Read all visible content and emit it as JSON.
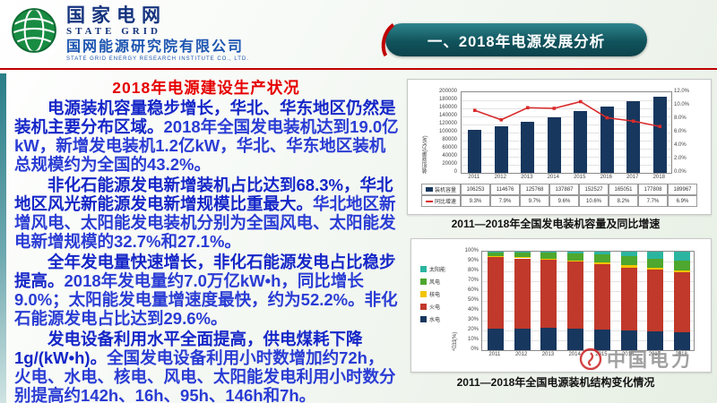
{
  "header": {
    "brand_cn": "国家电网",
    "brand_en": "STATE GRID",
    "org_cn": "国网能源研究院有限公司",
    "org_en": "STATE GRID ENERGY RESEARCH INSTITUTE CO., LTD.",
    "section_title": "一、2018年电源发展分析"
  },
  "content": {
    "heading": "2018年电源建设生产状况",
    "paragraphs": [
      {
        "lead": "电源装机容量稳步增长，华北、华东地区仍然是装机主要分布区域。",
        "body": "2018年全国发电装机达到19.0亿kW，新增发电装机1.2亿kW，华北、华东地区装机总规模约为全国的43.2%。"
      },
      {
        "lead": "非化石能源发电新增装机占比达到68.3%，华北地区风光新能源发电新增规模比重最大。",
        "body": "华北地区新增风电、太阳能发电装机分别为全国风电、太阳能发电新增规模的32.7%和27.1%。"
      },
      {
        "lead": "全年发电量快速增长，非化石能源发电占比稳步提高。",
        "body": "2018年发电量约7.0万亿kW•h，同比增长9.0%；太阳能发电量增速度最快，约为52.2%。非化石能源发电占比达到29.6%。"
      },
      {
        "lead": "发电设备利用水平全面提高，供电煤耗下降1g/(kW•h)。",
        "body": "全国发电设备利用小时数增加约72h，火电、水电、核电、风电、太阳能发电利用小时数分别提高约142h、16h、95h、146h和7h。"
      }
    ]
  },
  "watermark": {
    "text": "中国电力"
  },
  "colors": {
    "banner_teal": "#11535c",
    "accent_red": "#c00000",
    "text_blue": "#2a3cd4",
    "heading_red": "#e60000"
  },
  "chart_data": [
    {
      "type": "bar",
      "title": "2011—2018年全国发电装机容量及同比增速",
      "categories": [
        "2011",
        "2012",
        "2013",
        "2014",
        "2015",
        "2016",
        "2017",
        "2018"
      ],
      "series": [
        {
          "name": "装机容量",
          "kind": "bar",
          "unit": "万kW",
          "color": "#17375e",
          "values": [
            106253,
            114676,
            125768,
            137887,
            152527,
            165051,
            177808,
            189967
          ]
        },
        {
          "name": "同比增速",
          "kind": "line",
          "unit": "%",
          "color": "#d92b2b",
          "values": [
            9.3,
            7.9,
            9.7,
            9.6,
            10.6,
            8.2,
            7.7,
            6.9
          ]
        }
      ],
      "ylabel_left": "装机容量(万kW)",
      "ylim_left": [
        0,
        200000
      ],
      "ytick_left": 20000,
      "ylim_right": [
        0,
        12
      ],
      "ytick_right": 2,
      "grid": true,
      "legend_position": "table-left"
    },
    {
      "type": "bar",
      "subtype": "stacked-percent",
      "title": "2011—2018年全国电源装机结构变化情况",
      "categories": [
        "2011",
        "2012",
        "2013",
        "2014",
        "2015",
        "2016",
        "2017",
        "2018"
      ],
      "ylabel": "占比(%)",
      "ylim": [
        0,
        100
      ],
      "grid": true,
      "legend_position": "left",
      "series": [
        {
          "name": "水电",
          "color": "#17375e",
          "values": [
            21.8,
            21.7,
            22.3,
            22.2,
            21.0,
            20.1,
            19.3,
            18.5
          ]
        },
        {
          "name": "火电",
          "color": "#c0392b",
          "values": [
            72.5,
            71.5,
            69.2,
            67.4,
            65.9,
            64.0,
            62.2,
            60.2
          ]
        },
        {
          "name": "核电",
          "color": "#f2c500",
          "values": [
            1.2,
            1.1,
            1.2,
            1.5,
            1.8,
            2.0,
            2.0,
            2.4
          ]
        },
        {
          "name": "风电",
          "color": "#4ea72e",
          "values": [
            4.3,
            5.3,
            6.0,
            7.0,
            8.6,
            9.0,
            9.2,
            9.7
          ]
        },
        {
          "name": "太阳能",
          "color": "#2bb5a0",
          "values": [
            0.2,
            0.4,
            1.3,
            1.9,
            2.7,
            4.9,
            7.3,
            9.2
          ]
        }
      ]
    }
  ]
}
